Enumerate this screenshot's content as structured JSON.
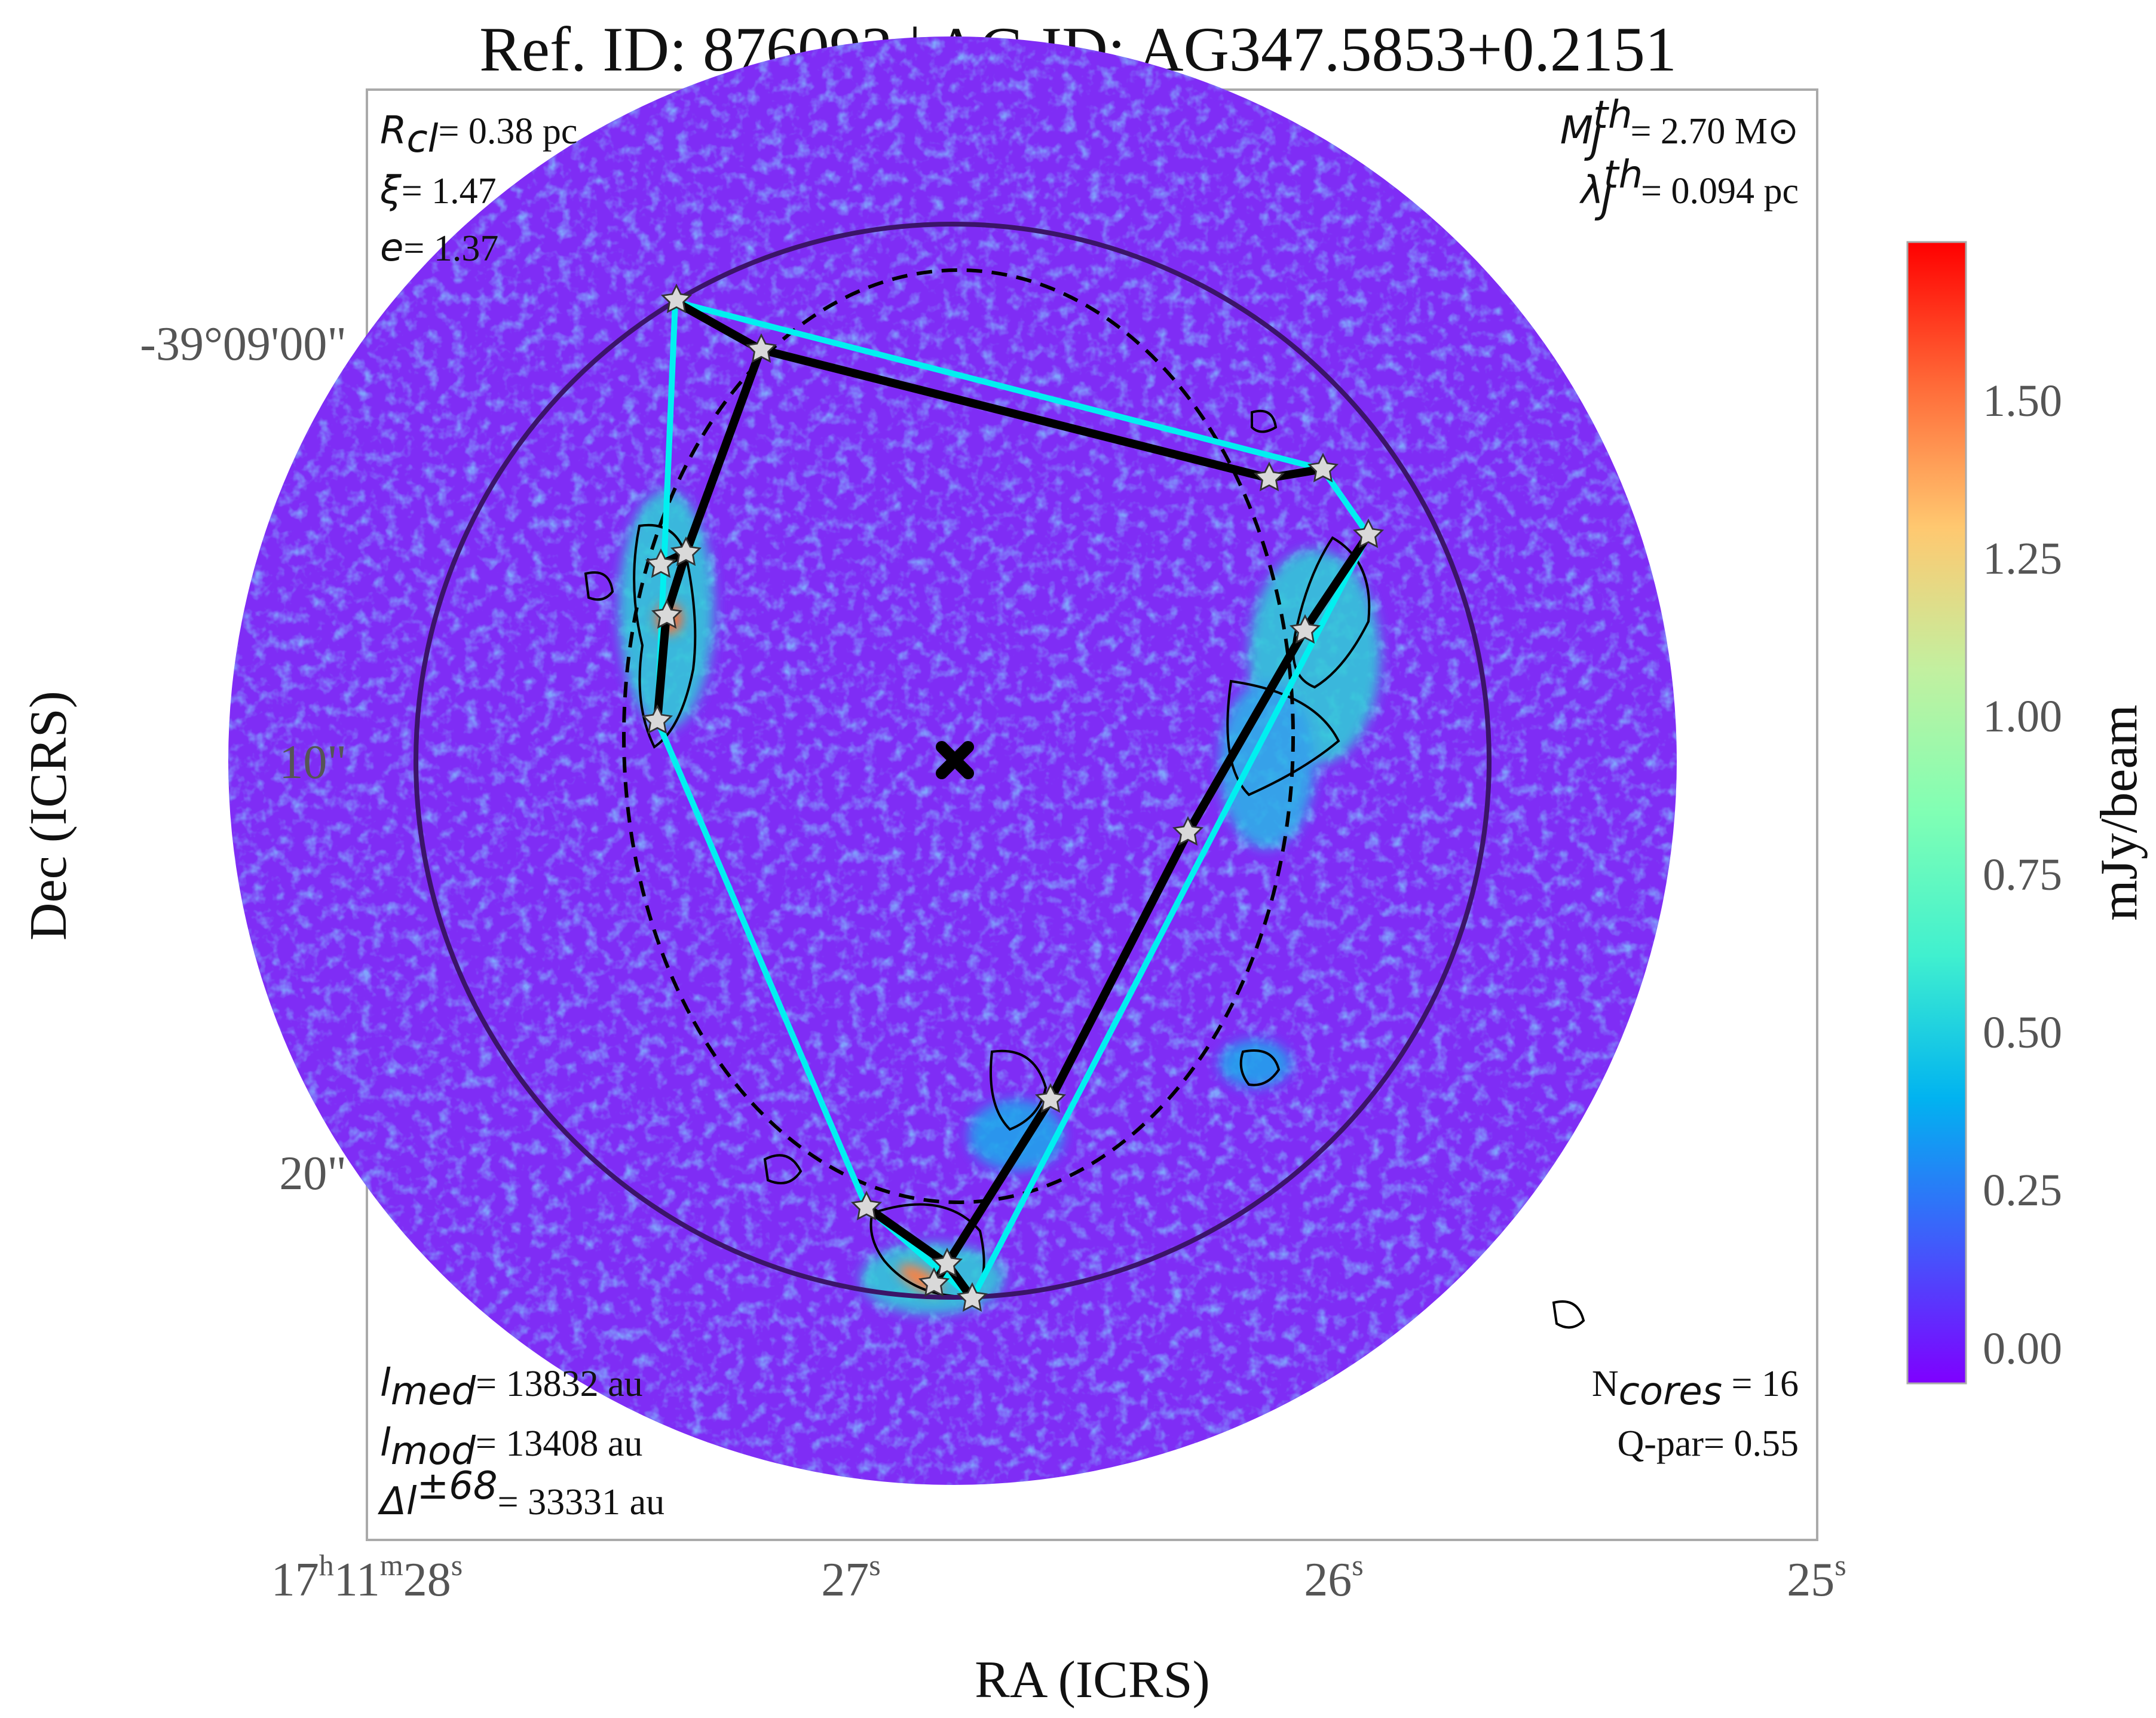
{
  "title": "Ref. ID: 876093 | AG ID: AG347.5853+0.2151",
  "xaxis": {
    "label": "RA (ICRS)",
    "ticks": [
      {
        "h": "17",
        "hsup": "h",
        "m": "11",
        "msup": "m",
        "s": "28",
        "ssup": "s"
      },
      {
        "s": "27",
        "ssup": "s"
      },
      {
        "s": "26",
        "ssup": "s"
      },
      {
        "s": "25",
        "ssup": "s"
      }
    ]
  },
  "yaxis": {
    "label": "Dec (ICRS)",
    "ticks": [
      "-39°09'00\"",
      "10\"",
      "20\""
    ]
  },
  "stats": {
    "top_left": [
      {
        "sym": "R",
        "sub": "cl",
        "val": "= 0.38 pc"
      },
      {
        "sym": "ξ",
        "val": "= 1.47"
      },
      {
        "sym": "e",
        "val": "= 1.37"
      }
    ],
    "top_right": [
      {
        "sym": "M",
        "sub": "J",
        "sup": "th",
        "val": "= 2.70 M",
        "unit": "⊙"
      },
      {
        "sym": "λ",
        "sub": "J",
        "sup": "th",
        "val": "= 0.094 pc"
      }
    ],
    "bottom_left": [
      {
        "sym": "l",
        "sub": "med",
        "val": "= 13832 au"
      },
      {
        "sym": "l",
        "sub": "mod",
        "val": "= 13408 au"
      },
      {
        "sym": "Δl",
        "sup": "±68",
        "val": "= 33331 au"
      }
    ],
    "bottom_right": [
      {
        "text": "N",
        "sub": "cores",
        "val": " = 16"
      },
      {
        "text": "Q-par",
        "val": "= 0.55"
      }
    ]
  },
  "colorbar": {
    "label": "mJy/beam",
    "ticks": [
      "0.00",
      "0.25",
      "0.50",
      "0.75",
      "1.00",
      "1.25",
      "1.50"
    ],
    "colormap": [
      "#7f00ff",
      "#3f5dfb",
      "#01b3f0",
      "#40f0cf",
      "#80ffb4",
      "#c2f0a0",
      "#ffb360",
      "#ff5a2c",
      "#ff0000"
    ]
  },
  "colors": {
    "background": "#7f2df5",
    "mst_line": "#000000",
    "hull_line": "#00f0f0",
    "outer_circle": "#3b1468",
    "star_fill": "#d9d9d9"
  },
  "markers": {
    "cores": "star",
    "center": "x-marker"
  }
}
